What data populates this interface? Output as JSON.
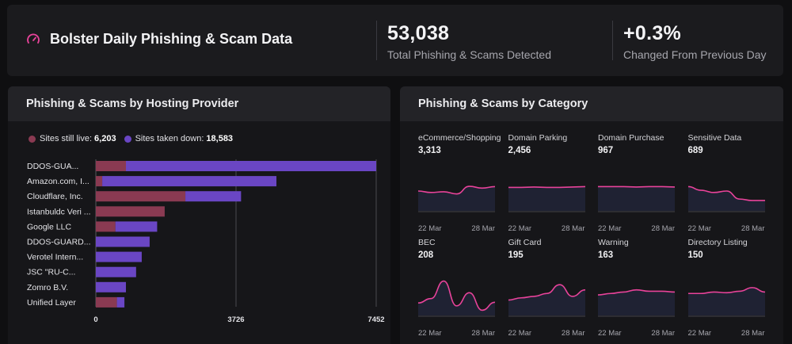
{
  "header": {
    "title": "Bolster Daily Phishing & Scam Data",
    "stats": [
      {
        "value": "53,038",
        "label": "Total Phishing & Scams Detected"
      },
      {
        "value": "+0.3%",
        "label": "Changed From Previous Day"
      }
    ]
  },
  "colors": {
    "live": "#8a3a52",
    "down": "#6a46c4",
    "spark": "#e8439a"
  },
  "hosting": {
    "title": "Phishing & Scams by Hosting Provider",
    "legend": {
      "live_label": "Sites still live:",
      "live_value": "6,203",
      "down_label": "Sites taken down:",
      "down_value": "18,583"
    }
  },
  "chart_data": {
    "type": "bar",
    "orientation": "horizontal",
    "stacked": true,
    "categories": [
      "DDOS-GUA...",
      "Amazon.com, I...",
      "Cloudflare, Inc.",
      "Istanbuldc Veri ...",
      "Google LLC",
      "DDOS-GUARD...",
      "Verotel Intern...",
      "JSC \"RU-C...",
      "Zomro B.V.",
      "Unified Layer"
    ],
    "series": [
      {
        "name": "Sites still live",
        "values": [
          800,
          170,
          2380,
          1830,
          520,
          0,
          0,
          0,
          0,
          560
        ]
      },
      {
        "name": "Sites taken down",
        "values": [
          6652,
          4630,
          1480,
          0,
          1110,
          1430,
          1220,
          1070,
          800,
          200
        ]
      }
    ],
    "xticks": [
      "0",
      "3726",
      "7452"
    ],
    "xlim": [
      0,
      7452
    ],
    "grid": true
  },
  "category": {
    "title": "Phishing & Scams by Category",
    "date_start": "22 Mar",
    "date_end": "28 Mar",
    "items": [
      {
        "name": "eCommerce/Shopping",
        "value": "3,313",
        "trend": [
          0.5,
          0.46,
          0.48,
          0.42,
          0.63,
          0.58,
          0.62
        ]
      },
      {
        "name": "Domain Parking",
        "value": "2,456",
        "trend": [
          0.6,
          0.6,
          0.61,
          0.6,
          0.6,
          0.61,
          0.62
        ]
      },
      {
        "name": "Domain Purchase",
        "value": "967",
        "trend": [
          0.62,
          0.62,
          0.62,
          0.61,
          0.62,
          0.62,
          0.61
        ]
      },
      {
        "name": "Sensitive Data",
        "value": "689",
        "trend": [
          0.62,
          0.52,
          0.46,
          0.5,
          0.28,
          0.24,
          0.24
        ]
      },
      {
        "name": "BEC",
        "value": "208",
        "trend": [
          0.3,
          0.42,
          0.9,
          0.22,
          0.58,
          0.1,
          0.32
        ]
      },
      {
        "name": "Gift Card",
        "value": "195",
        "trend": [
          0.38,
          0.44,
          0.48,
          0.56,
          0.8,
          0.48,
          0.66
        ]
      },
      {
        "name": "Warning",
        "value": "163",
        "trend": [
          0.52,
          0.56,
          0.6,
          0.66,
          0.62,
          0.62,
          0.6
        ]
      },
      {
        "name": "Directory Listing",
        "value": "150",
        "trend": [
          0.56,
          0.56,
          0.6,
          0.58,
          0.62,
          0.72,
          0.6
        ]
      }
    ]
  }
}
